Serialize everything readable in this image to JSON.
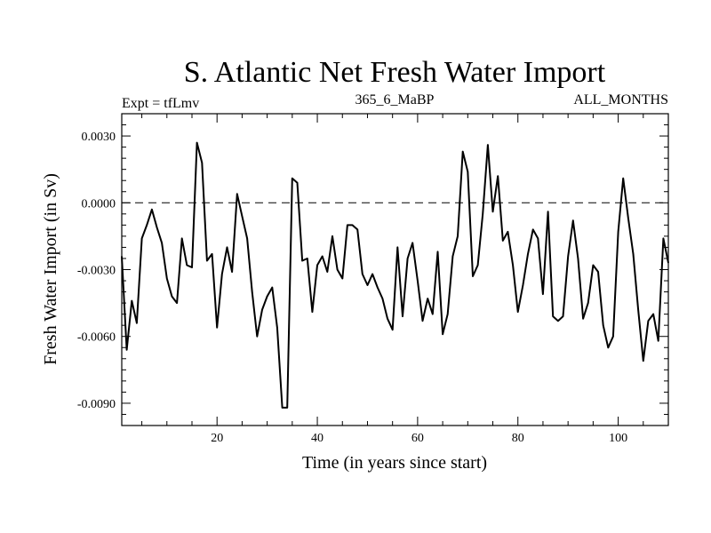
{
  "chart_data": {
    "type": "line",
    "title": "S. Atlantic Net Fresh Water Import",
    "subtitle_left": "Expt = tfLmv",
    "subtitle_center": "365_6_MaBP",
    "subtitle_right": "ALL_MONTHS",
    "xlabel": "Time (in years since start)",
    "ylabel": "Fresh Water Import (in Sv)",
    "xlim": [
      1,
      110
    ],
    "ylim": [
      -0.01,
      0.004
    ],
    "x_ticks": [
      20,
      40,
      60,
      80,
      100
    ],
    "x_tick_labels": [
      "20",
      "40",
      "60",
      "80",
      "100"
    ],
    "y_ticks": [
      0.003,
      0.0,
      -0.003,
      -0.006,
      -0.009
    ],
    "y_tick_labels": [
      "0.0030",
      "0.0000",
      "-0.0030",
      "-0.0060",
      "-0.0090"
    ],
    "reference_line": 0.0,
    "series": [
      {
        "name": "Net Fresh Water Import",
        "x": [
          1,
          2,
          3,
          4,
          5,
          6,
          7,
          8,
          9,
          10,
          11,
          12,
          13,
          14,
          15,
          16,
          17,
          18,
          19,
          20,
          21,
          22,
          23,
          24,
          25,
          26,
          27,
          28,
          29,
          30,
          31,
          32,
          33,
          34,
          35,
          36,
          37,
          38,
          39,
          40,
          41,
          42,
          43,
          44,
          45,
          46,
          47,
          48,
          49,
          50,
          51,
          52,
          53,
          54,
          55,
          56,
          57,
          58,
          59,
          60,
          61,
          62,
          63,
          64,
          65,
          66,
          67,
          68,
          69,
          70,
          71,
          72,
          73,
          74,
          75,
          76,
          77,
          78,
          79,
          80,
          81,
          82,
          83,
          84,
          85,
          86,
          87,
          88,
          89,
          90,
          91,
          92,
          93,
          94,
          95,
          96,
          97,
          98,
          99,
          100,
          101,
          102,
          103,
          104,
          105,
          106,
          107,
          108,
          109,
          110
        ],
        "y": [
          -0.0024,
          -0.0066,
          -0.0044,
          -0.0054,
          -0.0016,
          -0.001,
          -0.0003,
          -0.0011,
          -0.0018,
          -0.0034,
          -0.0042,
          -0.0045,
          -0.0016,
          -0.0028,
          -0.0029,
          0.0027,
          0.0018,
          -0.0026,
          -0.0023,
          -0.0056,
          -0.0032,
          -0.002,
          -0.0031,
          0.0004,
          -0.0006,
          -0.0016,
          -0.004,
          -0.006,
          -0.0048,
          -0.0042,
          -0.0038,
          -0.0056,
          -0.0092,
          -0.0092,
          0.0011,
          0.0009,
          -0.0026,
          -0.0025,
          -0.0049,
          -0.0028,
          -0.0024,
          -0.0031,
          -0.0015,
          -0.003,
          -0.0034,
          -0.001,
          -0.001,
          -0.0012,
          -0.0032,
          -0.0037,
          -0.0032,
          -0.0038,
          -0.0043,
          -0.0052,
          -0.0057,
          -0.002,
          -0.0051,
          -0.0025,
          -0.0018,
          -0.0035,
          -0.0053,
          -0.0043,
          -0.005,
          -0.0022,
          -0.0059,
          -0.005,
          -0.0024,
          -0.0015,
          0.0023,
          0.0014,
          -0.0033,
          -0.0028,
          -0.0005,
          0.0026,
          -0.0004,
          0.0012,
          -0.0017,
          -0.0013,
          -0.0028,
          -0.0049,
          -0.0037,
          -0.0023,
          -0.0012,
          -0.0016,
          -0.0041,
          -0.0004,
          -0.0051,
          -0.0053,
          -0.0051,
          -0.0024,
          -0.0008,
          -0.0025,
          -0.0052,
          -0.0045,
          -0.0028,
          -0.0031,
          -0.0055,
          -0.0065,
          -0.006,
          -0.0013,
          0.0011,
          -0.0007,
          -0.0023,
          -0.0048,
          -0.0071,
          -0.0053,
          -0.005,
          -0.0062,
          -0.0016,
          -0.0027
        ]
      }
    ]
  }
}
